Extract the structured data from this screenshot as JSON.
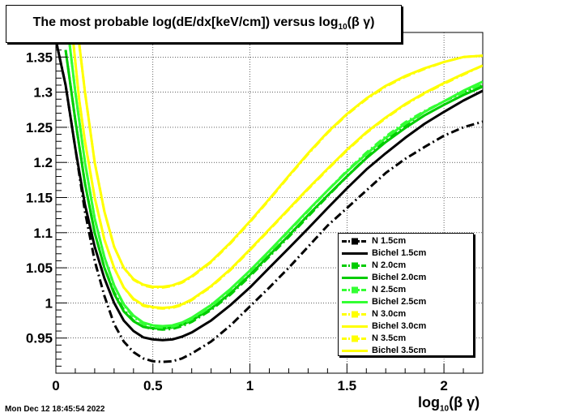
{
  "title_main": "The most probable log(dE/dx[keV/cm]) versus log",
  "title_sub": "10",
  "title_tail": "(β γ)",
  "timestamp": "Mon Dec 12 18:45:54 2022",
  "xaxis_main": "log",
  "xaxis_sub": "10",
  "xaxis_tail": "(β γ)",
  "chart_data": {
    "type": "line",
    "title": "The most probable log(dE/dx[keV/cm]) versus log10(β γ)",
    "xlabel": "log10(β γ)",
    "ylabel": "",
    "xlim": [
      0,
      2.2
    ],
    "ylim": [
      0.9,
      1.385
    ],
    "grid": true,
    "legend_position": "bottom-right",
    "x_ticks": [
      0,
      0.5,
      1,
      1.5,
      2
    ],
    "x_tick_labels": [
      "0",
      "0.5",
      "1",
      "1.5",
      "2"
    ],
    "y_ticks": [
      0.95,
      1,
      1.05,
      1.1,
      1.15,
      1.2,
      1.25,
      1.3,
      1.35
    ],
    "y_tick_labels": [
      "0.95",
      "1",
      "1.05",
      "1.1",
      "1.15",
      "1.2",
      "1.25",
      "1.3",
      "1.35"
    ],
    "series": [
      {
        "name": "N 1.5cm",
        "color": "#000000",
        "style": "dashdot",
        "x": [
          0.0,
          0.05,
          0.1,
          0.15,
          0.2,
          0.25,
          0.3,
          0.35,
          0.4,
          0.45,
          0.5,
          0.55,
          0.6,
          0.65,
          0.7,
          0.8,
          0.9,
          1.0,
          1.1,
          1.2,
          1.3,
          1.4,
          1.5,
          1.6,
          1.7,
          1.8,
          1.9,
          2.0,
          2.1,
          2.2
        ],
        "y": [
          1.374,
          1.31,
          1.22,
          1.13,
          1.06,
          1.01,
          0.97,
          0.945,
          0.93,
          0.921,
          0.917,
          0.916,
          0.917,
          0.921,
          0.928,
          0.945,
          0.968,
          0.995,
          1.022,
          1.05,
          1.08,
          1.11,
          1.135,
          1.16,
          1.185,
          1.205,
          1.222,
          1.238,
          1.25,
          1.258
        ]
      },
      {
        "name": "Bichel 1.5cm",
        "color": "#000000",
        "style": "solid",
        "x": [
          0.0,
          0.05,
          0.1,
          0.15,
          0.2,
          0.25,
          0.3,
          0.35,
          0.4,
          0.45,
          0.5,
          0.55,
          0.6,
          0.65,
          0.7,
          0.8,
          0.9,
          1.0,
          1.1,
          1.2,
          1.3,
          1.4,
          1.5,
          1.6,
          1.7,
          1.8,
          1.9,
          2.0,
          2.1,
          2.2
        ],
        "y": [
          1.374,
          1.31,
          1.22,
          1.14,
          1.08,
          1.035,
          1.0,
          0.975,
          0.96,
          0.951,
          0.948,
          0.947,
          0.948,
          0.952,
          0.958,
          0.975,
          0.997,
          1.022,
          1.05,
          1.078,
          1.106,
          1.135,
          1.163,
          1.19,
          1.213,
          1.235,
          1.255,
          1.272,
          1.288,
          1.302
        ]
      },
      {
        "name": "N 2.0cm",
        "color": "#00cc00",
        "style": "dashdot",
        "x": [
          0.05,
          0.1,
          0.15,
          0.2,
          0.25,
          0.3,
          0.35,
          0.4,
          0.45,
          0.5,
          0.55,
          0.6,
          0.65,
          0.7,
          0.8,
          0.9,
          1.0,
          1.1,
          1.2,
          1.3,
          1.4,
          1.5,
          1.6,
          1.7,
          1.8,
          1.9,
          2.0,
          2.1,
          2.2
        ],
        "y": [
          1.36,
          1.26,
          1.17,
          1.1,
          1.05,
          1.015,
          0.99,
          0.975,
          0.966,
          0.963,
          0.962,
          0.963,
          0.967,
          0.973,
          0.99,
          1.012,
          1.038,
          1.066,
          1.094,
          1.123,
          1.152,
          1.18,
          1.207,
          1.231,
          1.253,
          1.272,
          1.287,
          1.3,
          1.31
        ]
      },
      {
        "name": "Bichel 2.0cm",
        "color": "#00cc00",
        "style": "solid",
        "x": [
          0.05,
          0.1,
          0.15,
          0.2,
          0.25,
          0.3,
          0.35,
          0.4,
          0.45,
          0.5,
          0.55,
          0.6,
          0.65,
          0.7,
          0.8,
          0.9,
          1.0,
          1.1,
          1.2,
          1.3,
          1.4,
          1.5,
          1.6,
          1.7,
          1.8,
          1.9,
          2.0,
          2.1,
          2.2
        ],
        "y": [
          1.36,
          1.26,
          1.17,
          1.1,
          1.05,
          1.013,
          0.988,
          0.974,
          0.966,
          0.964,
          0.964,
          0.965,
          0.969,
          0.975,
          0.992,
          1.014,
          1.04,
          1.068,
          1.096,
          1.125,
          1.153,
          1.18,
          1.206,
          1.229,
          1.249,
          1.267,
          1.282,
          1.296,
          1.308
        ]
      },
      {
        "name": "N 2.5cm",
        "color": "#33ff33",
        "style": "dashdot",
        "x": [
          0.07,
          0.1,
          0.15,
          0.2,
          0.25,
          0.3,
          0.35,
          0.4,
          0.45,
          0.5,
          0.55,
          0.6,
          0.65,
          0.7,
          0.8,
          0.9,
          1.0,
          1.1,
          1.2,
          1.3,
          1.4,
          1.5,
          1.6,
          1.7,
          1.8,
          1.9,
          2.0,
          2.1,
          2.2
        ],
        "y": [
          1.37,
          1.3,
          1.2,
          1.12,
          1.065,
          1.025,
          0.997,
          0.98,
          0.97,
          0.966,
          0.965,
          0.966,
          0.97,
          0.977,
          0.995,
          1.018,
          1.045,
          1.073,
          1.102,
          1.131,
          1.16,
          1.188,
          1.214,
          1.237,
          1.257,
          1.273,
          1.287,
          1.3,
          1.312
        ]
      },
      {
        "name": "Bichel 2.5cm",
        "color": "#33ff33",
        "style": "solid",
        "x": [
          0.07,
          0.1,
          0.15,
          0.2,
          0.25,
          0.3,
          0.35,
          0.4,
          0.45,
          0.5,
          0.55,
          0.6,
          0.65,
          0.7,
          0.8,
          0.9,
          1.0,
          1.1,
          1.2,
          1.3,
          1.4,
          1.5,
          1.6,
          1.7,
          1.8,
          1.9,
          2.0,
          2.1,
          2.2
        ],
        "y": [
          1.37,
          1.3,
          1.2,
          1.12,
          1.065,
          1.025,
          0.998,
          0.982,
          0.972,
          0.968,
          0.967,
          0.968,
          0.972,
          0.979,
          0.997,
          1.02,
          1.046,
          1.074,
          1.103,
          1.132,
          1.16,
          1.187,
          1.212,
          1.235,
          1.255,
          1.272,
          1.287,
          1.302,
          1.315
        ]
      },
      {
        "name": "N 3.0cm",
        "color": "#ffff00",
        "style": "dashdot",
        "x": [
          0.09,
          0.12,
          0.15,
          0.2,
          0.25,
          0.3,
          0.35,
          0.4,
          0.45,
          0.5,
          0.55,
          0.6,
          0.65,
          0.7,
          0.8,
          0.9,
          1.0,
          1.1,
          1.2,
          1.3,
          1.4,
          1.5,
          1.6,
          1.7,
          1.8,
          1.9,
          2.0,
          2.1,
          2.2
        ],
        "y": [
          1.37,
          1.29,
          1.23,
          1.15,
          1.09,
          1.05,
          1.022,
          1.005,
          0.996,
          0.993,
          0.992,
          0.993,
          0.997,
          1.004,
          1.023,
          1.047,
          1.075,
          1.104,
          1.133,
          1.162,
          1.19,
          1.217,
          1.242,
          1.263,
          1.282,
          1.298,
          1.312,
          1.325,
          1.338
        ]
      },
      {
        "name": "Bichel 3.0cm",
        "color": "#ffff00",
        "style": "solid",
        "x": [
          0.09,
          0.12,
          0.15,
          0.2,
          0.25,
          0.3,
          0.35,
          0.4,
          0.45,
          0.5,
          0.55,
          0.6,
          0.65,
          0.7,
          0.8,
          0.9,
          1.0,
          1.1,
          1.2,
          1.3,
          1.4,
          1.5,
          1.6,
          1.7,
          1.8,
          1.9,
          2.0,
          2.1,
          2.2
        ],
        "y": [
          1.37,
          1.29,
          1.23,
          1.15,
          1.09,
          1.05,
          1.022,
          1.006,
          0.997,
          0.994,
          0.993,
          0.994,
          0.998,
          1.005,
          1.024,
          1.048,
          1.076,
          1.105,
          1.134,
          1.163,
          1.191,
          1.218,
          1.243,
          1.264,
          1.283,
          1.299,
          1.313,
          1.326,
          1.338
        ]
      },
      {
        "name": "N 3.5cm",
        "color": "#ffff00",
        "style": "dashdot",
        "x": [
          0.12,
          0.15,
          0.2,
          0.25,
          0.3,
          0.35,
          0.4,
          0.45,
          0.5,
          0.55,
          0.6,
          0.65,
          0.7,
          0.8,
          0.9,
          1.0,
          1.1,
          1.2,
          1.3,
          1.4,
          1.5,
          1.6,
          1.7,
          1.8,
          1.9,
          2.0,
          2.1,
          2.2
        ],
        "y": [
          1.37,
          1.3,
          1.2,
          1.13,
          1.08,
          1.05,
          1.033,
          1.025,
          1.022,
          1.022,
          1.024,
          1.029,
          1.037,
          1.058,
          1.085,
          1.115,
          1.147,
          1.18,
          1.212,
          1.242,
          1.268,
          1.29,
          1.308,
          1.322,
          1.333,
          1.343,
          1.35,
          1.352
        ]
      },
      {
        "name": "Bichel 3.5cm",
        "color": "#ffff00",
        "style": "solid",
        "x": [
          0.12,
          0.15,
          0.2,
          0.25,
          0.3,
          0.35,
          0.4,
          0.45,
          0.5,
          0.55,
          0.6,
          0.65,
          0.7,
          0.8,
          0.9,
          1.0,
          1.1,
          1.2,
          1.3,
          1.4,
          1.5,
          1.6,
          1.7,
          1.8,
          1.9,
          2.0,
          2.1,
          2.2
        ],
        "y": [
          1.37,
          1.3,
          1.2,
          1.13,
          1.08,
          1.05,
          1.034,
          1.026,
          1.023,
          1.023,
          1.025,
          1.03,
          1.038,
          1.059,
          1.086,
          1.116,
          1.148,
          1.181,
          1.213,
          1.243,
          1.269,
          1.291,
          1.309,
          1.323,
          1.334,
          1.343,
          1.35,
          1.352
        ]
      }
    ]
  }
}
